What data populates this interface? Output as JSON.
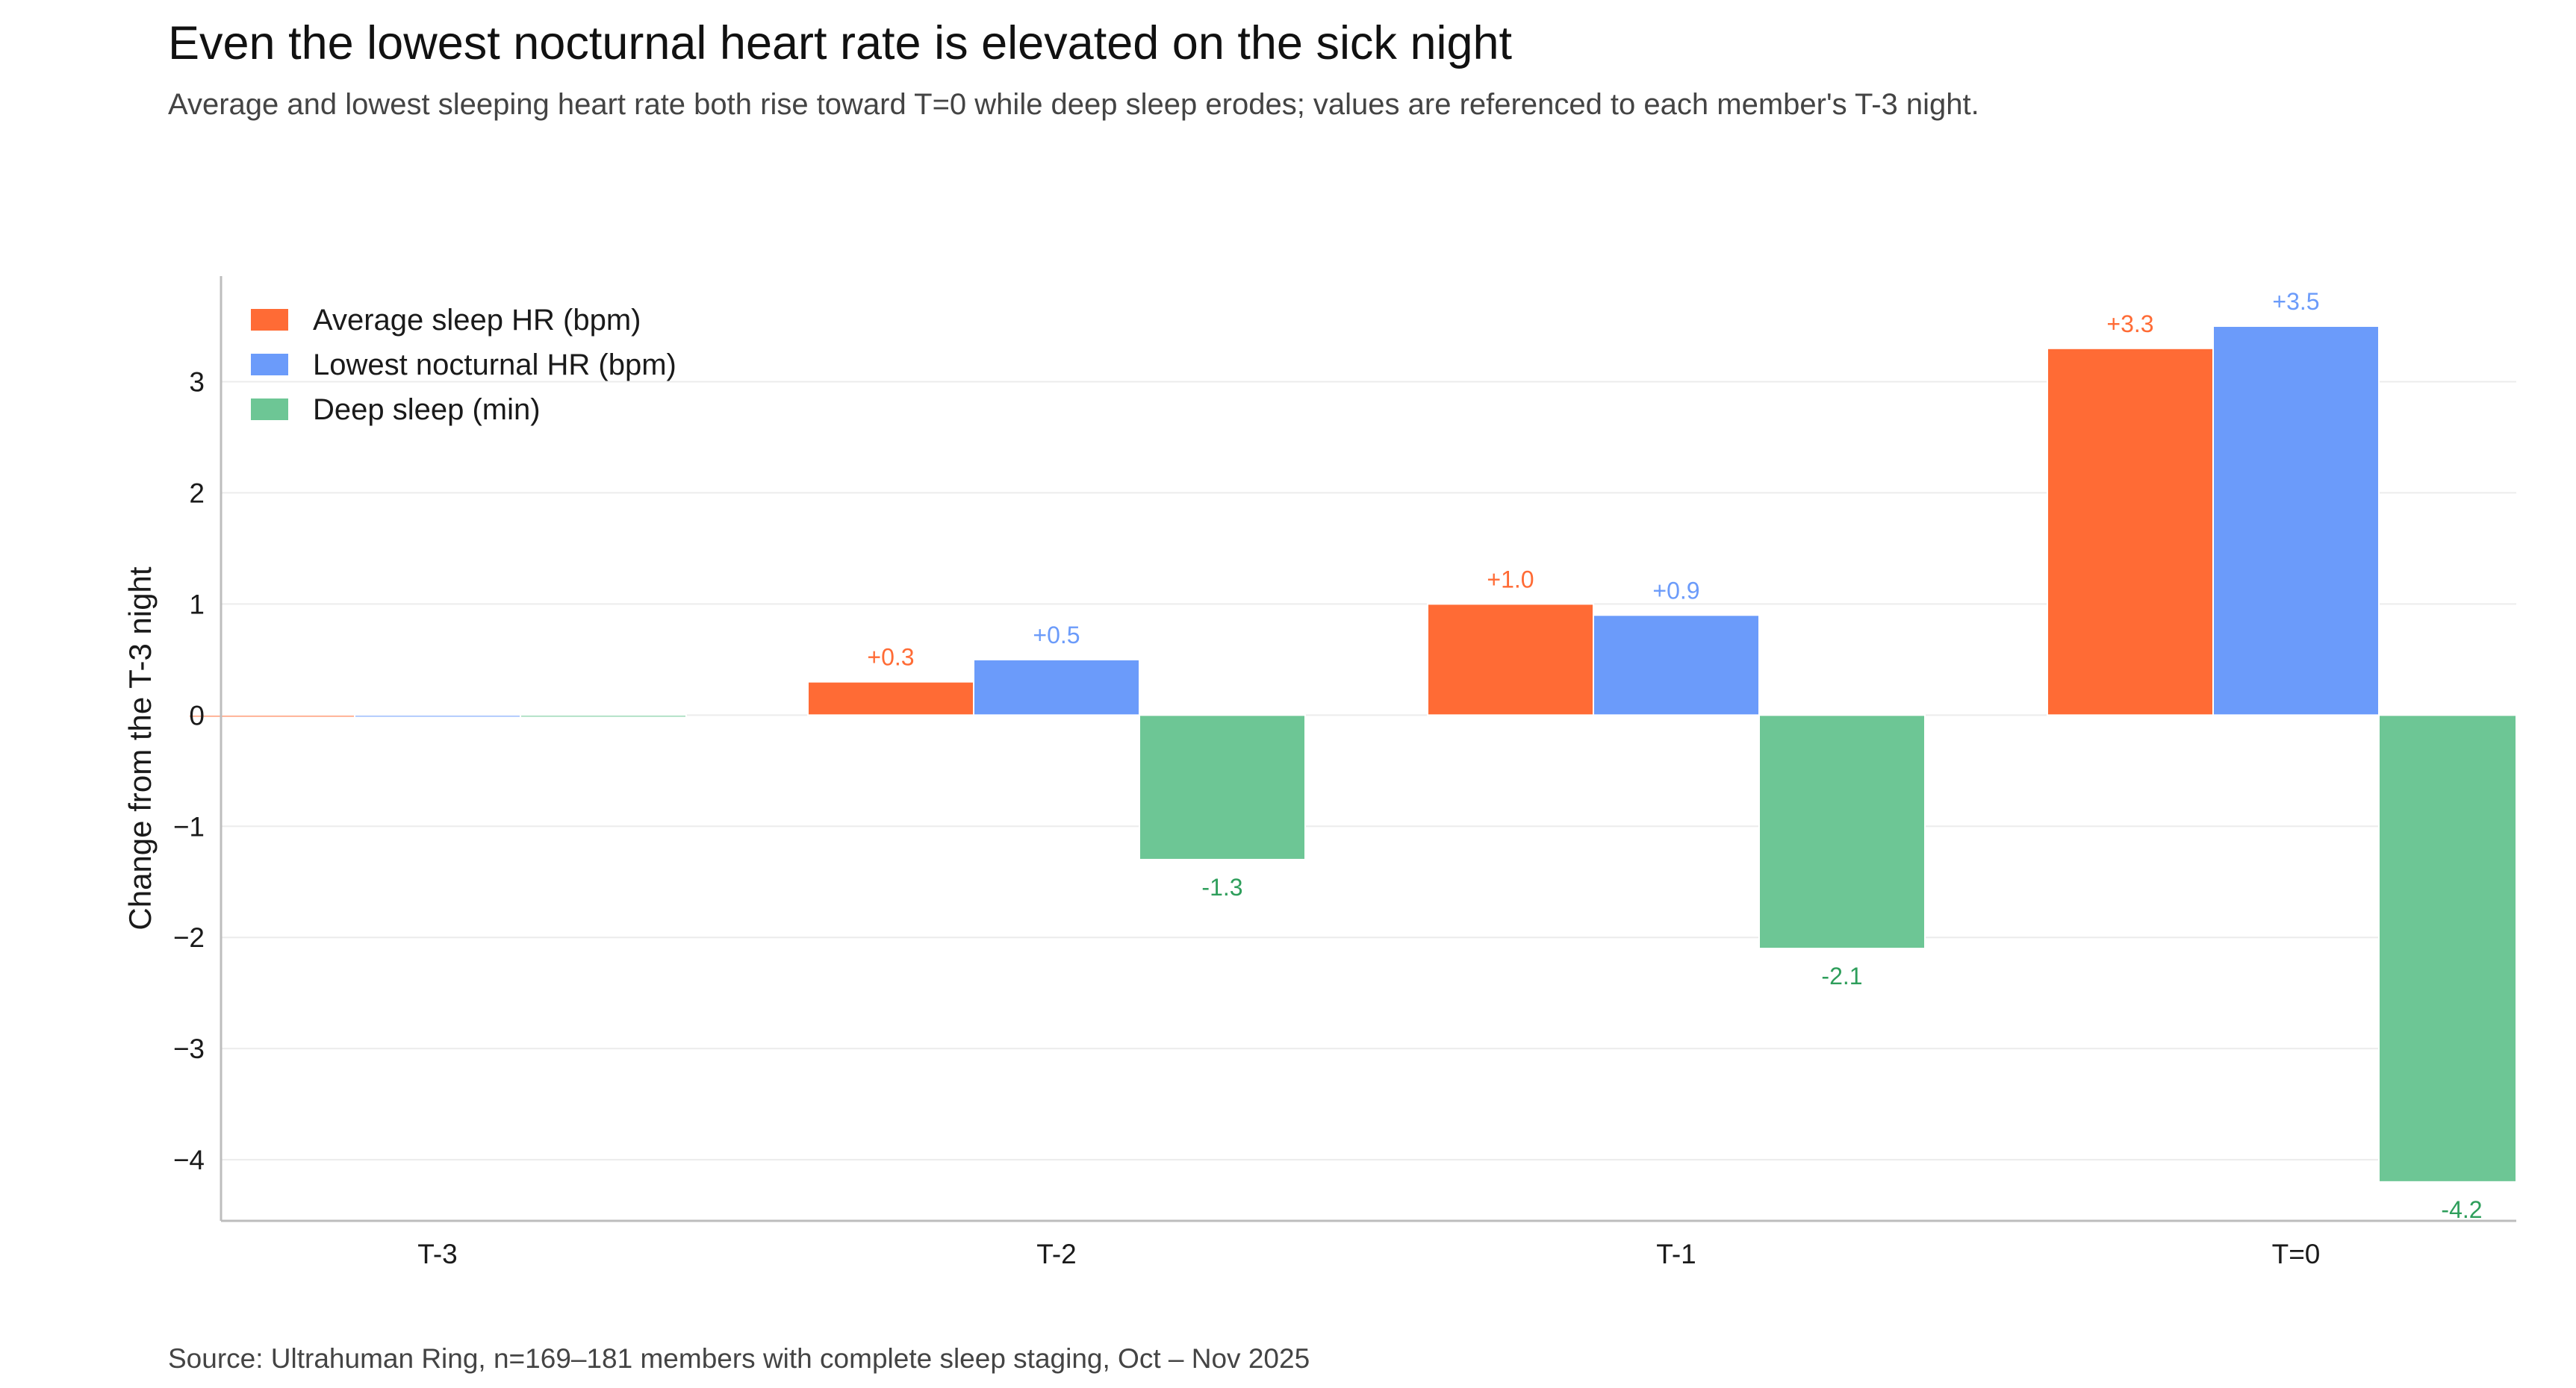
{
  "title": "Even the lowest nocturnal heart rate is elevated on the sick night",
  "subtitle": "Average and lowest sleeping heart rate both rise toward T=0 while deep sleep erodes; values are referenced to each member's T-3 night.",
  "source": "Source: Ultrahuman Ring, n=169–181 members with complete sleep staging, Oct – Nov 2025",
  "chart_data": {
    "type": "bar",
    "categories": [
      "T-3",
      "T-2",
      "T-1",
      "T=0"
    ],
    "ylabel": "Change from the T-3 night",
    "xlabel": "",
    "ylim": [
      -4.55,
      3.95
    ],
    "yticks": [
      3,
      2,
      1,
      0,
      -1,
      -2,
      -3,
      -4
    ],
    "ytick_labels": [
      "3",
      "2",
      "1",
      "0",
      "−1",
      "−2",
      "−3",
      "−4"
    ],
    "grid": true,
    "legend_position": "top-left",
    "series": [
      {
        "name": "Average sleep HR (bpm)",
        "color": "#FF6B35",
        "values": [
          0,
          0.3,
          1.0,
          3.3
        ],
        "labels": [
          "",
          "+0.3",
          "+1.0",
          "+3.3"
        ]
      },
      {
        "name": "Lowest nocturnal HR (bpm)",
        "color": "#6B9BFA",
        "values": [
          0,
          0.5,
          0.9,
          3.5
        ],
        "labels": [
          "",
          "+0.5",
          "+0.9",
          "+3.5"
        ]
      },
      {
        "name": "Deep sleep (min)",
        "color": "#6DC695",
        "label_color": "#2E9E5B",
        "values": [
          0,
          -1.3,
          -2.1,
          -4.2
        ],
        "labels": [
          "",
          "-1.3",
          "-2.1",
          "-4.2"
        ]
      }
    ]
  }
}
